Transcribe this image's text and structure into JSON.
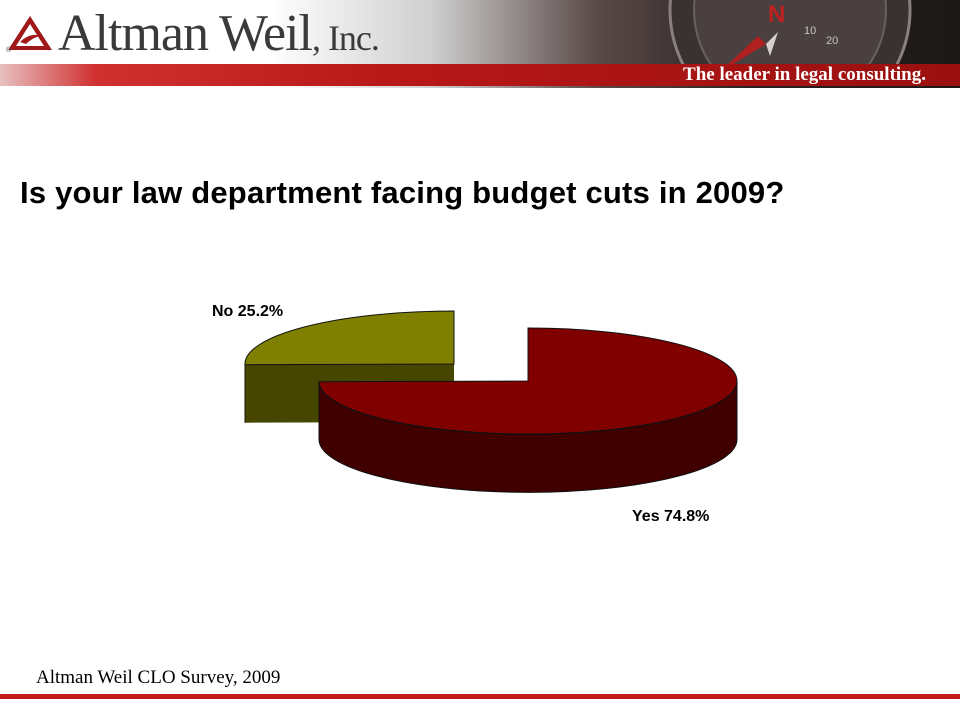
{
  "header": {
    "logo_name": "Altman Weil",
    "logo_suffix": ", Inc.",
    "tagline": "The leader in legal consulting.",
    "brand_color": "#b81818",
    "logo_icon": "altman-weil-logo-icon",
    "compass_icon": "compass-icon"
  },
  "title": "Is your law department facing budget cuts in 2009?",
  "chart_data": {
    "type": "pie",
    "style": "3d-exploded",
    "categories": [
      "No",
      "Yes"
    ],
    "values": [
      25.2,
      74.8
    ],
    "labels": [
      "No 25.2%",
      "Yes 74.8%"
    ],
    "colors": [
      "#808000",
      "#800000"
    ],
    "title": "Is your law department facing budget cuts in 2009?"
  },
  "footer": {
    "source": "Altman Weil CLO Survey, 2009"
  }
}
